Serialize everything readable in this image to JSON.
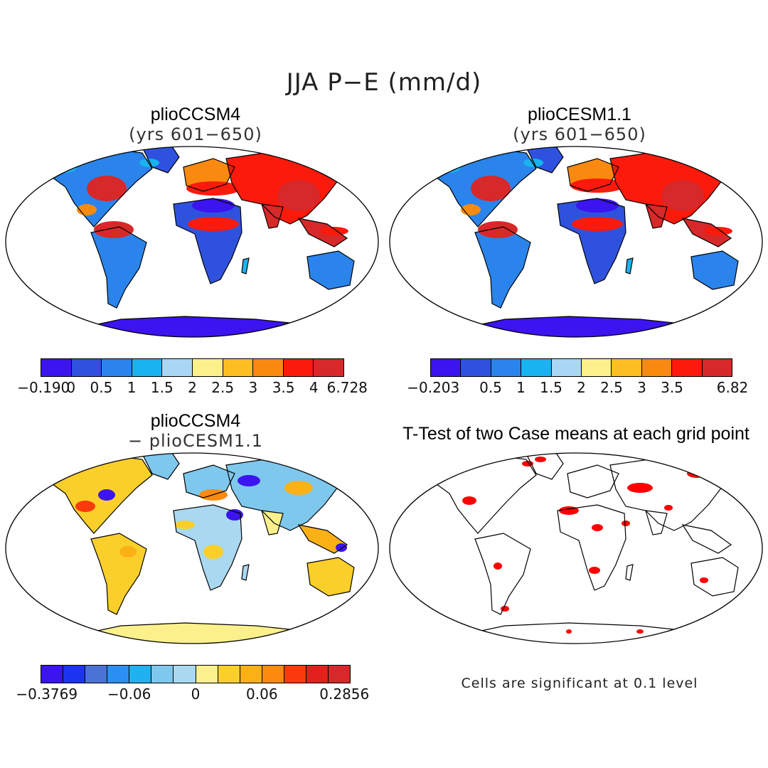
{
  "figure": {
    "title": "JJA P−E (mm/d)"
  },
  "panels": [
    {
      "id": "p1",
      "title": "plioCCSM4",
      "subtitle": "(yrs 601−650)",
      "kind": "field"
    },
    {
      "id": "p2",
      "title": "plioCESM1.1",
      "subtitle": "(yrs 601−650)",
      "kind": "field"
    },
    {
      "id": "p3",
      "title": "plioCCSM4",
      "subtitle": "− plioCESM1.1",
      "kind": "difference"
    },
    {
      "id": "p4",
      "title": "T-Test of two Case means at each grid point",
      "subtitle": "",
      "kind": "significance"
    }
  ],
  "colorbars": {
    "cb1": {
      "colors": [
        "#3b14f0",
        "#2f52de",
        "#2a84ec",
        "#19b3f2",
        "#a9d6f2",
        "#fbf08c",
        "#fbbf21",
        "#fa8a0f",
        "#fb1a0c",
        "#d7282a"
      ],
      "labels": [
        "−0.190",
        "0",
        "0.5",
        "1",
        "1.5",
        "2",
        "2.5",
        "3",
        "3.5",
        "4",
        "6.728"
      ]
    },
    "cb2": {
      "colors": [
        "#3b14f0",
        "#2f52de",
        "#2a84ec",
        "#19b3f2",
        "#a9d6f2",
        "#fbf08c",
        "#fbbf21",
        "#fa8a0f",
        "#fb1a0c",
        "#d7282a"
      ],
      "labels": [
        "−0.203",
        "0.5",
        "1",
        "1.5",
        "2",
        "2.5",
        "3",
        "3.5",
        "6.82"
      ]
    },
    "cb3": {
      "colors": [
        "#3b14f0",
        "#1c34f2",
        "#4b73d6",
        "#2a8ff2",
        "#1fb1f0",
        "#7ec8ee",
        "#a9d8f0",
        "#fbf08c",
        "#fbcf2a",
        "#fbb016",
        "#fb8a0f",
        "#fb3a0c",
        "#e3211c",
        "#d7282a"
      ],
      "labels": [
        "−0.3769",
        "−0.06",
        "0",
        "0.06",
        "0.2856"
      ]
    }
  },
  "significance": {
    "note": "Cells are significant at 0.1 level",
    "color": "#ff0000"
  }
}
